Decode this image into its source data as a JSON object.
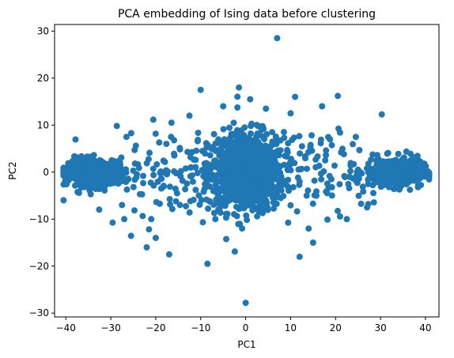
{
  "chart_data": {
    "type": "scatter",
    "title": "PCA embedding of Ising data before clustering",
    "xlabel": "PC1",
    "ylabel": "PC2",
    "xlim": [
      -42.5,
      43
    ],
    "ylim": [
      -30.8,
      31.4
    ],
    "xticks": [
      -40,
      -30,
      -20,
      -10,
      0,
      10,
      20,
      30,
      40
    ],
    "yticks": [
      -30,
      -20,
      -10,
      0,
      10,
      20,
      30
    ],
    "xtick_labels": [
      "−40",
      "−30",
      "−20",
      "−10",
      "0",
      "10",
      "20",
      "30",
      "40"
    ],
    "ytick_labels": [
      "−30",
      "−20",
      "−10",
      "0",
      "10",
      "20",
      "30"
    ],
    "grid": false,
    "legend": "none",
    "point_color": "#1f77b4",
    "series": [
      {
        "clusters": [
          {
            "cx": 0,
            "cy": 0,
            "sx": 4.2,
            "sy": 4.2,
            "n": 900
          },
          {
            "cx": -33,
            "cy": 0,
            "sx": 3.2,
            "sy": 1.5,
            "n": 320
          },
          {
            "cx": 33,
            "cy": 0,
            "sx": 3.2,
            "sy": 1.5,
            "n": 320
          },
          {
            "cx": -38.5,
            "cy": 0,
            "sx": 1.2,
            "sy": 0.5,
            "n": 160
          },
          {
            "cx": 38.5,
            "cy": 0,
            "sx": 1.2,
            "sy": 0.5,
            "n": 160
          },
          {
            "cx": -16,
            "cy": 0,
            "sx": 9,
            "sy": 4.5,
            "n": 130
          },
          {
            "cx": 16,
            "cy": 0,
            "sx": 9,
            "sy": 4.5,
            "n": 130
          }
        ],
        "outliers": [
          [
            7,
            28.5
          ],
          [
            0,
            -27.8
          ],
          [
            -10,
            17.5
          ],
          [
            -8.5,
            -19.5
          ],
          [
            11,
            16
          ],
          [
            20.5,
            16.2
          ],
          [
            -1.5,
            18
          ],
          [
            12,
            -18
          ],
          [
            -17,
            -17.5
          ],
          [
            -16.5,
            10.5
          ],
          [
            17,
            14
          ],
          [
            -22,
            -16
          ],
          [
            -20,
            -14
          ],
          [
            -21,
            -10
          ],
          [
            15,
            -15
          ],
          [
            -24.7,
            4.7
          ],
          [
            22.5,
            -10
          ],
          [
            27,
            -7.5
          ],
          [
            -27.5,
            -7
          ],
          [
            -27,
            -10
          ],
          [
            21,
            8.4
          ],
          [
            -26.5,
            7.5
          ],
          [
            1,
            15.5
          ],
          [
            4.5,
            13.5
          ],
          [
            -12.5,
            12
          ],
          [
            10,
            12.5
          ],
          [
            -5,
            14
          ],
          [
            14,
            -12
          ]
        ]
      }
    ]
  }
}
